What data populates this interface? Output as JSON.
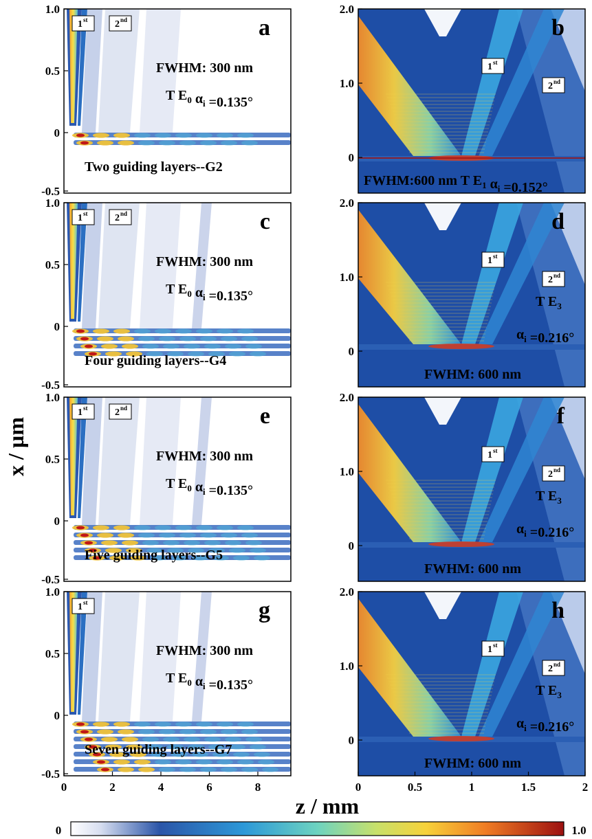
{
  "figure": {
    "y_axis_label": "x / µm",
    "x_axis_label": "z / mm",
    "colorbar": {
      "min_label": "0",
      "max_label": "1.0"
    }
  },
  "panels": [
    {
      "id": "a",
      "letter": "a",
      "column": "left",
      "x_ticks": [],
      "y_ticks": [
        "1.0",
        "0.5",
        "0",
        "-0.5"
      ],
      "orders": [
        {
          "main": "1",
          "sup": "st"
        },
        {
          "main": "2",
          "sup": "nd"
        }
      ],
      "lines": [
        [
          {
            "t": "FWHM: 300 nm"
          }
        ],
        [
          {
            "t": "T E"
          },
          {
            "t": "0",
            "sub": true
          },
          {
            "t": "   α"
          },
          {
            "t": "i",
            "sub": true
          },
          {
            "t": " =0.135°"
          }
        ],
        [
          {
            "t": "Two guiding layers--G2"
          }
        ]
      ]
    },
    {
      "id": "b",
      "letter": "b",
      "column": "right",
      "x_ticks": [],
      "y_ticks": [
        "2.0",
        "1.0",
        "0"
      ],
      "orders": [
        {
          "main": "1",
          "sup": "st"
        },
        {
          "main": "2",
          "sup": "nd"
        }
      ],
      "lines": [
        [
          {
            "t": "FWHM:600 nm T E"
          },
          {
            "t": "1",
            "sub": true
          },
          {
            "t": " α"
          },
          {
            "t": "i",
            "sub": true
          },
          {
            "t": " =0.152°"
          }
        ]
      ]
    },
    {
      "id": "c",
      "letter": "c",
      "column": "left",
      "x_ticks": [],
      "y_ticks": [
        "1.0",
        "0.5",
        "0",
        "-0.5"
      ],
      "orders": [
        {
          "main": "1",
          "sup": "st"
        },
        {
          "main": "2",
          "sup": "nd"
        }
      ],
      "lines": [
        [
          {
            "t": "FWHM: 300 nm"
          }
        ],
        [
          {
            "t": "T E"
          },
          {
            "t": "0",
            "sub": true
          },
          {
            "t": "   α"
          },
          {
            "t": "i",
            "sub": true
          },
          {
            "t": " =0.135°"
          }
        ],
        [
          {
            "t": "Four guiding layers--G4"
          }
        ]
      ]
    },
    {
      "id": "d",
      "letter": "d",
      "column": "right",
      "x_ticks": [],
      "y_ticks": [
        "2.0",
        "1.0",
        "0"
      ],
      "orders": [
        {
          "main": "1",
          "sup": "st"
        },
        {
          "main": "2",
          "sup": "nd"
        }
      ],
      "lines": [
        [
          {
            "t": "T E"
          },
          {
            "t": "3",
            "sub": true
          }
        ],
        [
          {
            "t": "α"
          },
          {
            "t": "i",
            "sub": true
          },
          {
            "t": " =0.216°"
          }
        ],
        [
          {
            "t": "FWHM: 600 nm"
          }
        ]
      ]
    },
    {
      "id": "e",
      "letter": "e",
      "column": "left",
      "x_ticks": [],
      "y_ticks": [
        "1.0",
        "0.5",
        "0",
        "-0.5"
      ],
      "orders": [
        {
          "main": "1",
          "sup": "st"
        },
        {
          "main": "2",
          "sup": "nd"
        }
      ],
      "lines": [
        [
          {
            "t": "FWHM: 300 nm"
          }
        ],
        [
          {
            "t": "T E"
          },
          {
            "t": "0",
            "sub": true
          },
          {
            "t": "   α"
          },
          {
            "t": "i",
            "sub": true
          },
          {
            "t": " =0.135°"
          }
        ],
        [
          {
            "t": "Five guiding layers--G5"
          }
        ]
      ]
    },
    {
      "id": "f",
      "letter": "f",
      "column": "right",
      "x_ticks": [],
      "y_ticks": [
        "2.0",
        "1.0",
        "0"
      ],
      "orders": [
        {
          "main": "1",
          "sup": "st"
        },
        {
          "main": "2",
          "sup": "nd"
        }
      ],
      "lines": [
        [
          {
            "t": "T E"
          },
          {
            "t": "3",
            "sub": true
          }
        ],
        [
          {
            "t": "α"
          },
          {
            "t": "i",
            "sub": true
          },
          {
            "t": " =0.216°"
          }
        ],
        [
          {
            "t": "FWHM: 600 nm"
          }
        ]
      ]
    },
    {
      "id": "g",
      "letter": "g",
      "column": "left",
      "x_ticks": [
        "0",
        "2",
        "4",
        "6",
        "8"
      ],
      "y_ticks": [
        "1.0",
        "0.5",
        "0",
        "-0.5"
      ],
      "orders": [
        {
          "main": "1",
          "sup": "st"
        }
      ],
      "lines": [
        [
          {
            "t": "FWHM: 300 nm"
          }
        ],
        [
          {
            "t": "T E"
          },
          {
            "t": "0",
            "sub": true
          },
          {
            "t": "   α"
          },
          {
            "t": "i",
            "sub": true
          },
          {
            "t": " =0.135°"
          }
        ],
        [
          {
            "t": "Seven guiding layers--G7"
          }
        ]
      ]
    },
    {
      "id": "h",
      "letter": "h",
      "column": "right",
      "x_ticks": [
        "0",
        "0.5",
        "1",
        "1.5",
        "2"
      ],
      "y_ticks": [
        "2.0",
        "1.0",
        "0"
      ],
      "orders": [
        {
          "main": "1",
          "sup": "st"
        },
        {
          "main": "2",
          "sup": "nd"
        }
      ],
      "lines": [
        [
          {
            "t": "T E"
          },
          {
            "t": "3",
            "sub": true
          }
        ],
        [
          {
            "t": "α"
          },
          {
            "t": "i",
            "sub": true
          },
          {
            "t": " =0.216°"
          }
        ],
        [
          {
            "t": "FWHM: 600 nm"
          }
        ]
      ]
    }
  ]
}
